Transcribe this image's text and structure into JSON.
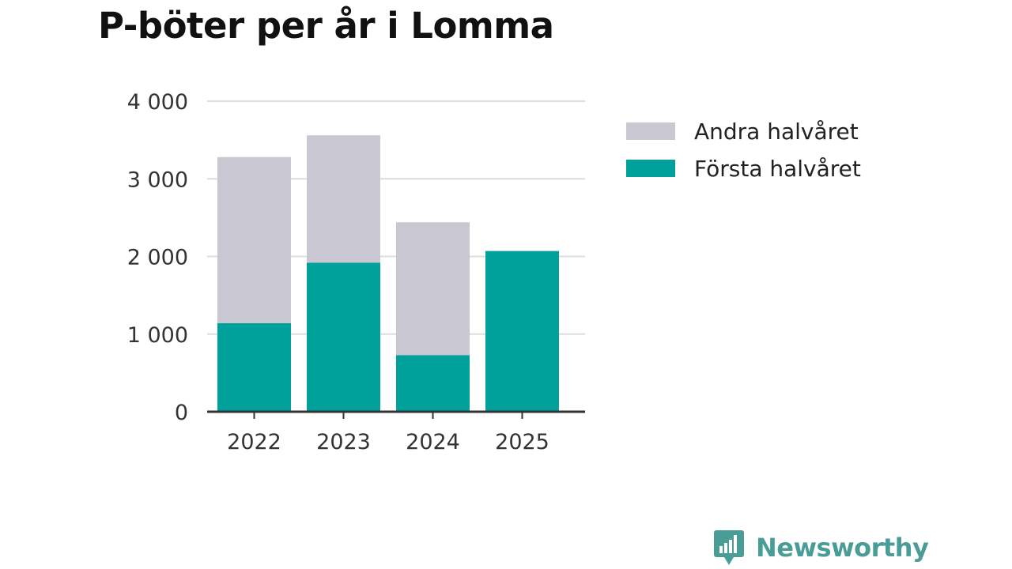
{
  "title": "P-böter per år i Lomma",
  "brand": {
    "name": "Newsworthy",
    "icon": "bar-chart-speech-bubble-icon",
    "color": "#4a9d97"
  },
  "colors": {
    "first_half": "#00a19a",
    "second_half": "#c8c7d2",
    "grid": "#dddddd",
    "axis": "#333333"
  },
  "chart_data": {
    "type": "bar",
    "stacked": true,
    "title": "P-böter per år i Lomma",
    "xlabel": "",
    "ylabel": "",
    "categories": [
      "2022",
      "2023",
      "2024",
      "2025"
    ],
    "series": [
      {
        "name": "Första halvåret",
        "color": "#00a19a",
        "values": [
          1140,
          1920,
          730,
          2070
        ]
      },
      {
        "name": "Andra halvåret",
        "color": "#c8c7d2",
        "values": [
          2140,
          1640,
          1710,
          0
        ]
      }
    ],
    "ylim": [
      0,
      4000
    ],
    "yticks": [
      0,
      1000,
      2000,
      3000,
      4000
    ],
    "ytick_labels": [
      "0",
      "1 000",
      "2 000",
      "3 000",
      "4 000"
    ],
    "grid": true,
    "legend": {
      "position": "right",
      "items": [
        "Andra halvåret",
        "Första halvåret"
      ]
    }
  }
}
